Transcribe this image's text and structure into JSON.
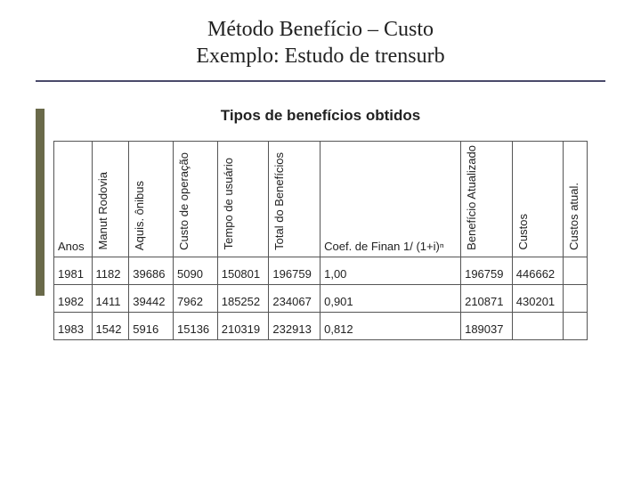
{
  "title_line1": "Método Benefício – Custo",
  "title_line2": "Exemplo: Estudo de trensurb",
  "subtitle": "Tipos de benefícios obtidos",
  "table": {
    "columns": [
      "Anos",
      "Manut Rodovia",
      "Aquis. ônibus",
      "Custo de operação",
      "Tempo de usuário",
      "Total do Benefícios",
      "Coef. de Finan 1/ (1+i)ⁿ",
      "Benefício Atualizado",
      "Custos",
      "Custos atual."
    ],
    "col_rotated": [
      false,
      true,
      true,
      true,
      true,
      true,
      false,
      true,
      true,
      true
    ],
    "rows": [
      [
        "1981",
        "1182",
        "39686",
        "5090",
        "150801",
        "196759",
        "1,00",
        "196759",
        "446662",
        ""
      ],
      [
        "1982",
        "1411",
        "39442",
        "7962",
        "185252",
        "234067",
        "0,901",
        "210871",
        "430201",
        ""
      ],
      [
        "1983",
        "1542",
        "5916",
        "15136",
        "210319",
        "232913",
        "0,812",
        "189037",
        "",
        ""
      ]
    ]
  },
  "colors": {
    "hr": "#4a4a6a",
    "accent": "#6a6a4a",
    "border": "#555555",
    "text": "#222222",
    "background": "#ffffff"
  }
}
